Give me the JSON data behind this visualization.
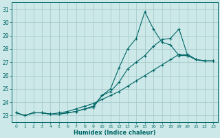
{
  "xlabel": "Humidex (Indice chaleur)",
  "ylabel": "",
  "bg_color": "#cce8e8",
  "grid_color": "#aacccc",
  "line_color": "#006666",
  "xlim": [
    -0.5,
    23.5
  ],
  "ylim": [
    22.5,
    31.5
  ],
  "xticks": [
    0,
    1,
    2,
    3,
    4,
    5,
    6,
    7,
    8,
    9,
    10,
    11,
    12,
    13,
    14,
    15,
    16,
    17,
    18,
    19,
    20,
    21,
    22,
    23
  ],
  "yticks": [
    23,
    24,
    25,
    26,
    27,
    28,
    29,
    30,
    31
  ],
  "series": [
    [
      23.2,
      23.0,
      23.2,
      23.2,
      23.1,
      23.1,
      23.2,
      23.3,
      23.5,
      23.6,
      24.5,
      25.0,
      26.6,
      28.0,
      28.8,
      30.8,
      29.5,
      28.5,
      28.3,
      27.5,
      27.5,
      27.2,
      27.1,
      27.1
    ],
    [
      23.2,
      23.0,
      23.2,
      23.2,
      23.1,
      23.1,
      23.2,
      23.3,
      23.5,
      23.7,
      24.5,
      24.8,
      25.5,
      26.5,
      27.0,
      27.5,
      28.2,
      28.7,
      28.8,
      29.5,
      27.5,
      27.2,
      27.1,
      27.1
    ],
    [
      23.2,
      23.0,
      23.2,
      23.2,
      23.1,
      23.2,
      23.3,
      23.5,
      23.7,
      23.9,
      24.2,
      24.5,
      24.8,
      25.2,
      25.6,
      26.0,
      26.4,
      26.8,
      27.2,
      27.6,
      27.6,
      27.2,
      27.1,
      27.1
    ]
  ]
}
